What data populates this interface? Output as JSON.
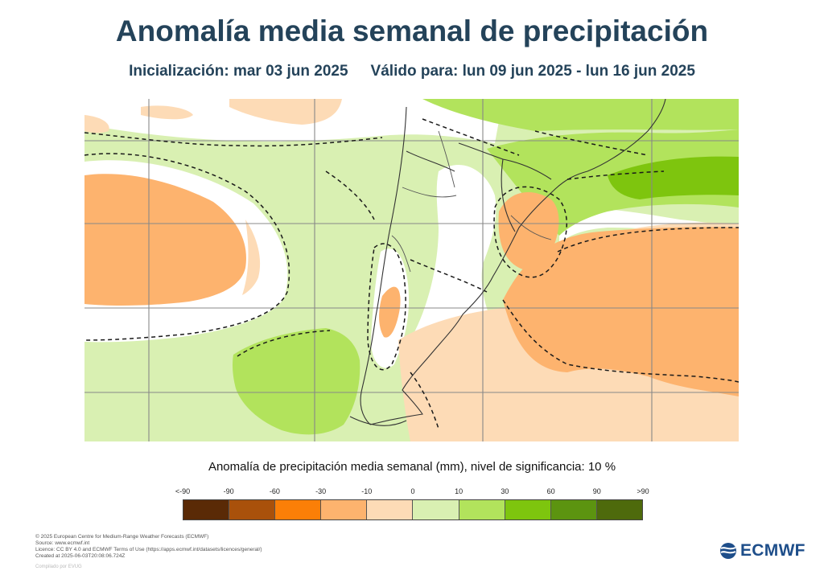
{
  "title": "Anomalía media semanal de precipitación",
  "subtitle": {
    "init": "Inicialización: mar 03 jun 2025",
    "valid": "Válido para: lun 09 jun 2025 - lun 16 jun 2025"
  },
  "legend": {
    "title": "Anomalía de precipitación media semanal (mm), nivel de significancia: 10 %",
    "ticks": [
      "<-90",
      "-90",
      "-60",
      "-30",
      "-10",
      "0",
      "10",
      "30",
      "60",
      "90",
      ">90"
    ],
    "colors": [
      "#5a2a06",
      "#a9510b",
      "#fb7f07",
      "#fdb36e",
      "#fddbb6",
      "#d9f0b2",
      "#b2e35c",
      "#7ec50e",
      "#5c9410",
      "#4e6a0c"
    ]
  },
  "credits": [
    "© 2025 European Centre for Medium-Range Weather Forecasts (ECMWF)",
    "Source: www.ecmwf.int",
    "Licence: CC BY 4.0 and ECMWF Terms of Use (https://apps.ecmwf.int/datasets/licences/general/)",
    "Created at 2025-06-03T20:08:06.724Z"
  ],
  "compiled": "Compilado por EVUG",
  "logo": {
    "text": "ECMWF",
    "icon": "ecmwf-logo-icon"
  }
}
